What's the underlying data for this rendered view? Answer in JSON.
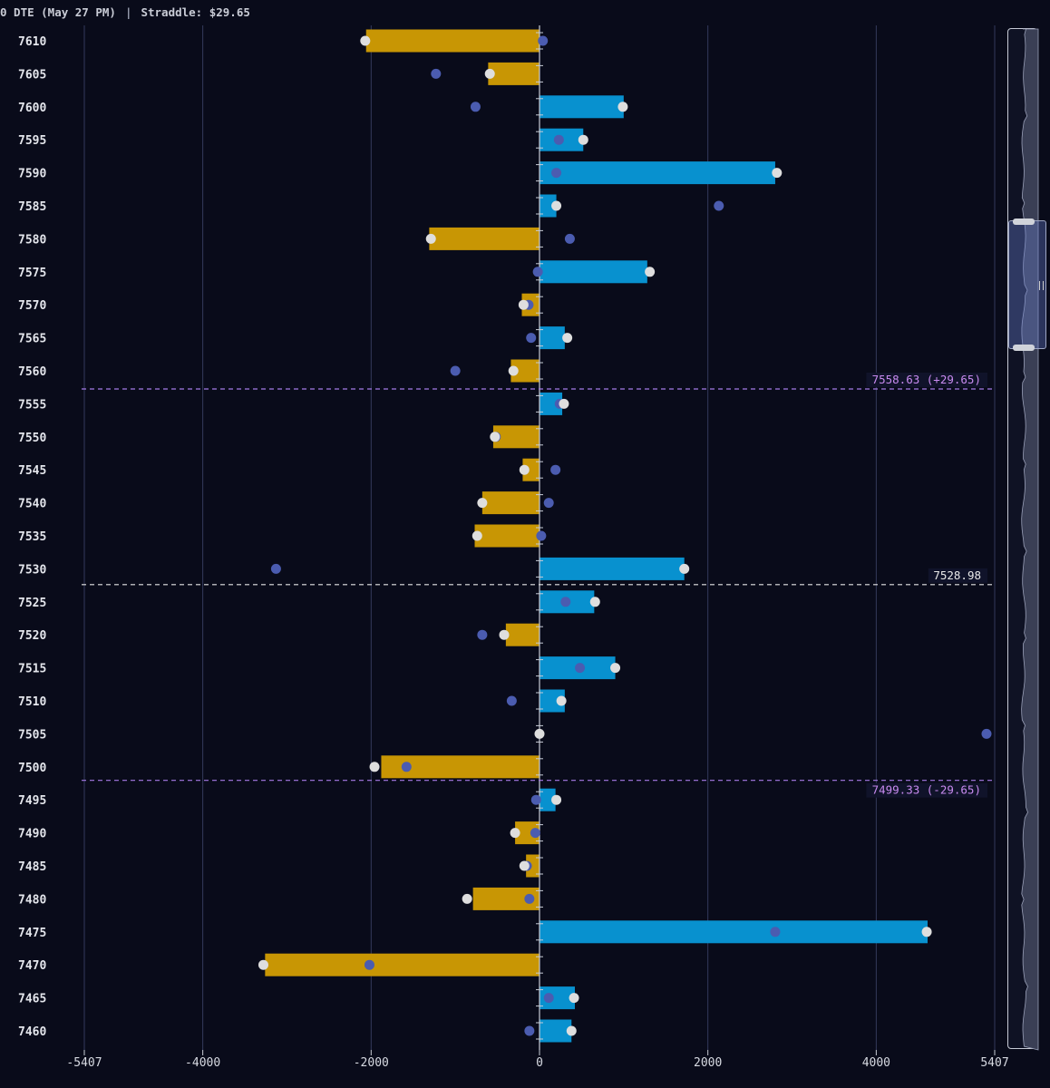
{
  "header": {
    "title": "0 DTE (May 27 PM)",
    "separator": "|",
    "straddle": "Straddle: $29.65"
  },
  "colors": {
    "background": "#090b1a",
    "positive_bar": "#0891cf",
    "negative_bar": "#c89604",
    "dot_primary": "#dedede",
    "dot_secondary": "#4b5cb0",
    "spot_line": "#e6e6e6",
    "band_line": "#a57be6"
  },
  "chart_data": {
    "type": "bar",
    "orientation": "horizontal",
    "xlim": [
      -5407,
      5407
    ],
    "x_tick_labels": [
      "-5407",
      "-4000",
      "-2000",
      "0",
      "2000",
      "4000",
      "5407"
    ],
    "x_ticks": [
      -5407,
      -4000,
      -2000,
      0,
      2000,
      4000,
      5407
    ],
    "grid": true,
    "categories": [
      "7610",
      "7605",
      "7600",
      "7595",
      "7590",
      "7585",
      "7580",
      "7575",
      "7570",
      "7565",
      "7560",
      "7555",
      "7550",
      "7545",
      "7540",
      "7535",
      "7530",
      "7525",
      "7520",
      "7515",
      "7510",
      "7505",
      "7500",
      "7495",
      "7490",
      "7485",
      "7480",
      "7475",
      "7470",
      "7465",
      "7460"
    ],
    "values": [
      -2060,
      -610,
      1000,
      520,
      2800,
      200,
      -1310,
      1280,
      -210,
      300,
      -340,
      270,
      -550,
      -200,
      -680,
      -770,
      1720,
      650,
      -400,
      900,
      300,
      0,
      -1880,
      190,
      -290,
      -160,
      -790,
      4610,
      -3260,
      420,
      380
    ],
    "dots_primary": [
      -2070,
      -590,
      990,
      520,
      2820,
      200,
      -1290,
      1310,
      -190,
      330,
      -310,
      290,
      -530,
      -180,
      -680,
      -740,
      1720,
      660,
      -420,
      900,
      260,
      0,
      -1960,
      200,
      -290,
      -180,
      -860,
      4600,
      -3280,
      410,
      380
    ],
    "dots_secondary": [
      40,
      -1230,
      -760,
      230,
      200,
      2130,
      360,
      -20,
      -130,
      -100,
      -1000,
      240,
      -520,
      190,
      110,
      20,
      -3130,
      310,
      -680,
      480,
      -330,
      5310,
      -1580,
      -40,
      -50,
      -150,
      -120,
      2800,
      -2020,
      110,
      -120
    ],
    "reference_lines": [
      {
        "value": 7558.63,
        "label": "7558.63 (+29.65)",
        "style": "band"
      },
      {
        "value": 7528.98,
        "label": "7528.98",
        "style": "spot"
      },
      {
        "value": 7499.33,
        "label": "7499.33 (-29.65)",
        "style": "band"
      }
    ]
  }
}
